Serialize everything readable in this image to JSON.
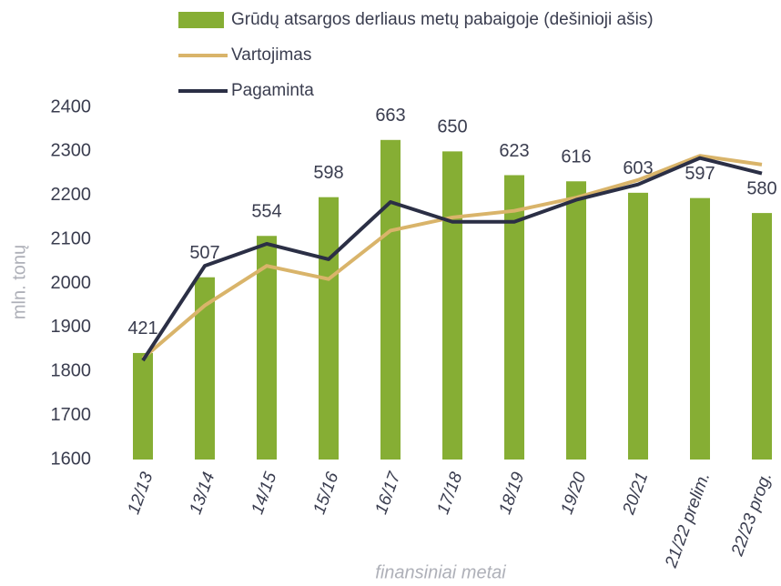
{
  "chart_data": {
    "type": "bar_line",
    "x_label": "finansiniai metai",
    "y_label": "mln. tonų",
    "categories": [
      "12/13",
      "13/14",
      "14/15",
      "15/16",
      "16/17",
      "17/18",
      "18/19",
      "19/20",
      "20/21",
      "21/22 prelim.",
      "22/23 prog."
    ],
    "series": [
      {
        "name": "Grūdų atsargos derliaus metų pabaigoje (dešinioji ašis)",
        "color": "#86ae34",
        "axis": "y2",
        "kind": "bar",
        "values": [
          421,
          507,
          554,
          598,
          663,
          650,
          623,
          616,
          603,
          597,
          580
        ]
      },
      {
        "name": "Vartojimas",
        "color": "#d9b46a",
        "kind": "line",
        "values": [
          1830,
          1950,
          2040,
          2010,
          2120,
          2150,
          2165,
          2195,
          2235,
          2290,
          2270
        ]
      },
      {
        "name": "Pagaminta",
        "color": "#2b2f45",
        "kind": "line",
        "values": [
          1825,
          2040,
          2090,
          2055,
          2185,
          2140,
          2140,
          2190,
          2225,
          2285,
          2250
        ]
      }
    ],
    "ylim": [
      1600,
      2400
    ],
    "yticks": [
      1600,
      1700,
      1800,
      1900,
      2000,
      2100,
      2200,
      2300,
      2400
    ],
    "y2lim": [
      300,
      700
    ],
    "grid": false
  }
}
